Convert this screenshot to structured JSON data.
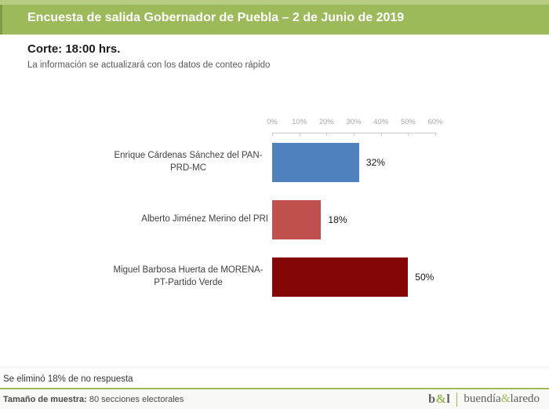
{
  "header": {
    "title": "Encuesta de salida Gobernador de Puebla – 2 de Junio de 2019",
    "background_color": "#9cba5a"
  },
  "section": {
    "cutoff_title": "Corte: 18:00 hrs.",
    "subtitle": "La información se actualizará con los datos de conteo rápido"
  },
  "chart_data": {
    "type": "bar",
    "orientation": "horizontal",
    "title": "",
    "categories": [
      "Enrique Cárdenas Sánchez del PAN-PRD-MC",
      "Alberto Jiménez Merino del PRI",
      "Miguel Barbosa Huerta de MORENA-PT-Partido Verde"
    ],
    "values": [
      32,
      18,
      50
    ],
    "value_labels": [
      "32%",
      "18%",
      "50%"
    ],
    "bar_colors": [
      "#4f81bd",
      "#c0504d",
      "#850606"
    ],
    "x_ticks": [
      "0%",
      "10%",
      "20%",
      "30%",
      "40%",
      "50%",
      "60%"
    ],
    "xlim": [
      0,
      60
    ],
    "axis_position": "top",
    "grid": false,
    "legend": false
  },
  "note": "Se eliminó 18% de no respuesta",
  "footer": {
    "sample_label": "Tamaño de muestra:",
    "sample_value": " 80 secciones electorales",
    "logo_short_b": "b",
    "logo_short_amp": "&",
    "logo_short_l": "l",
    "logo_full_left": "buendía",
    "logo_full_amp": "&",
    "logo_full_right": "laredo",
    "accent_color": "#9cba5a"
  }
}
